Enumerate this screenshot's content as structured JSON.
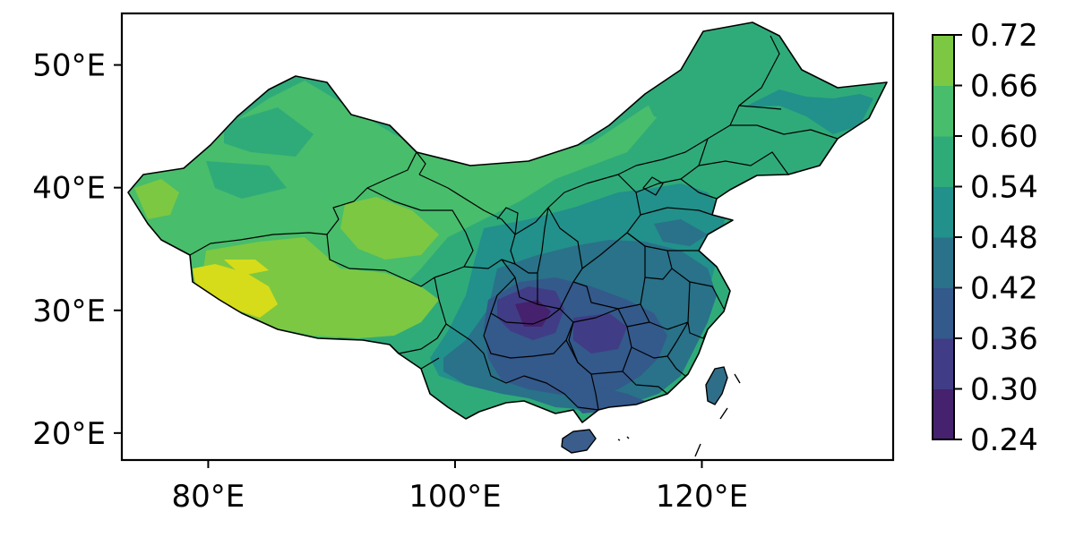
{
  "map": {
    "type": "filled-contour-map",
    "region_boundaries": "provincial",
    "x_axis": {
      "ticks": [
        80,
        100,
        120
      ],
      "tick_labels": [
        "80°E",
        "100°E",
        "120°E"
      ],
      "range": [
        73,
        135.5
      ]
    },
    "y_axis": {
      "ticks": [
        20,
        30,
        40,
        50
      ],
      "tick_labels": [
        "20°E",
        "30°E",
        "40°E",
        "50°E"
      ],
      "range": [
        17.8,
        54.2
      ]
    },
    "colorbar": {
      "levels": [
        0.24,
        0.3,
        0.36,
        0.42,
        0.48,
        0.54,
        0.6,
        0.66,
        0.72
      ],
      "tick_labels": [
        "0.24",
        "0.30",
        "0.36",
        "0.42",
        "0.48",
        "0.54",
        "0.60",
        "0.66",
        "0.72"
      ],
      "colors": [
        "#46216d",
        "#413c86",
        "#34598b",
        "#297289",
        "#22908b",
        "#2fab7a",
        "#48bd6b",
        "#7dc842",
        "#d6dc19"
      ]
    }
  }
}
